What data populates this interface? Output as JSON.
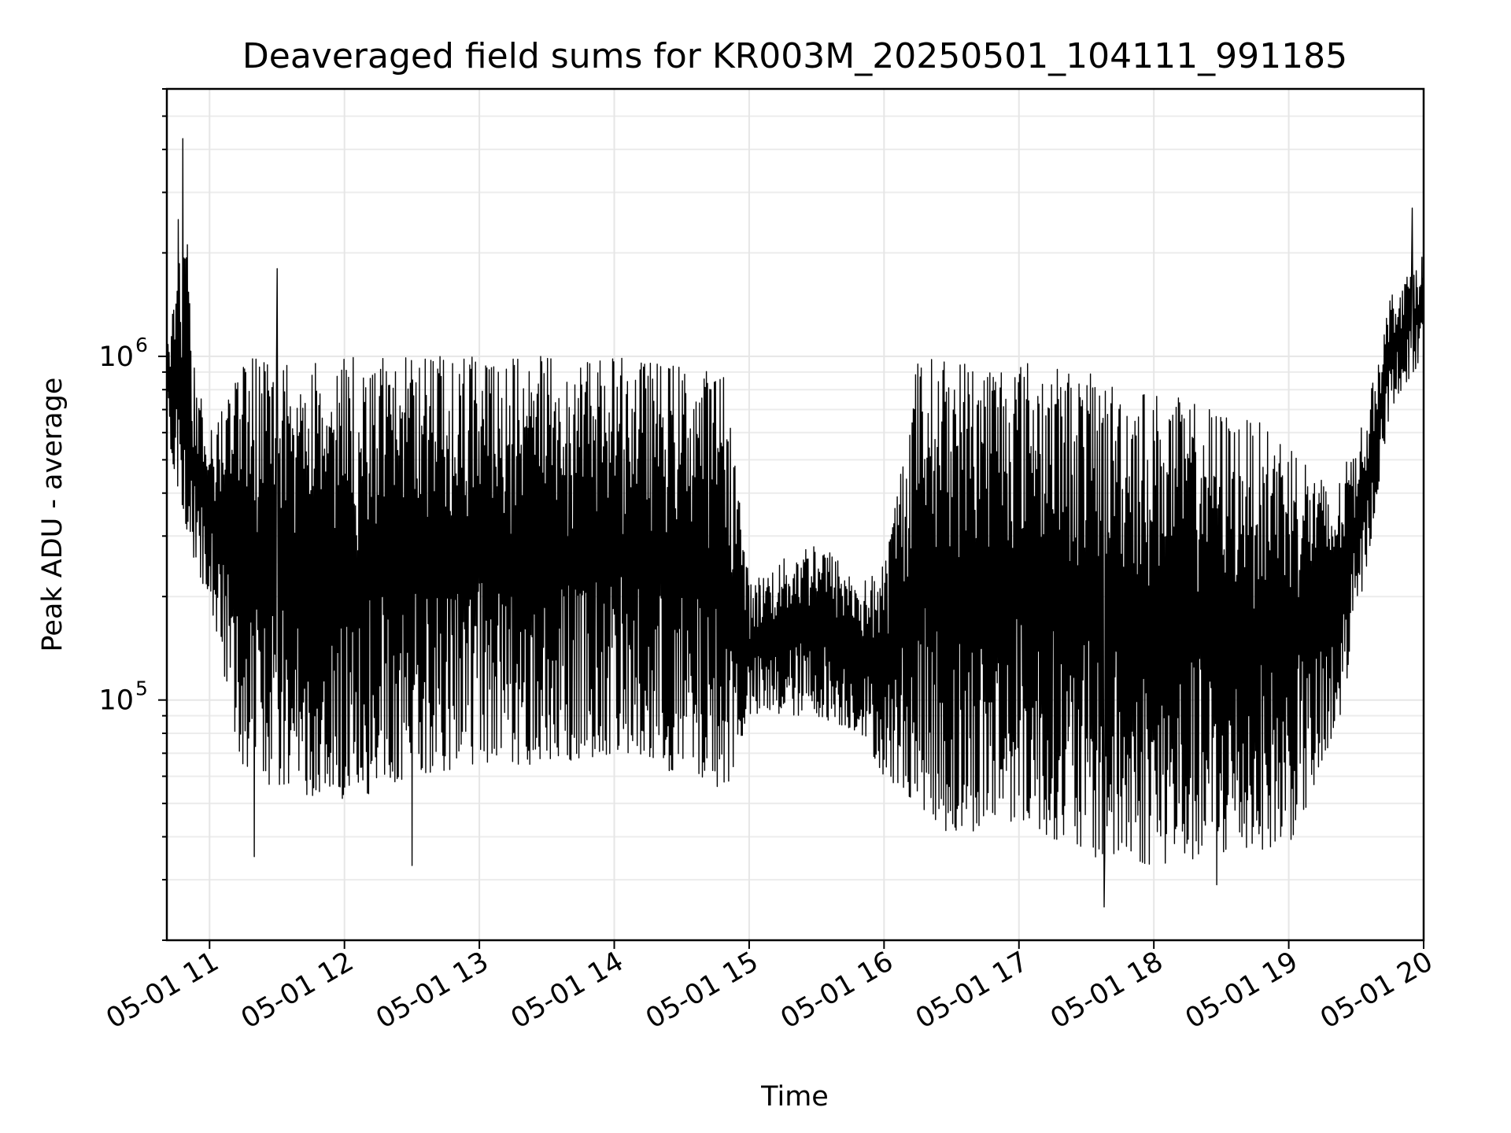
{
  "chart_data": {
    "type": "line",
    "title": "Deaveraged field sums for KR003M_20250501_104111_991185",
    "xlabel": "Time",
    "ylabel": "Peak ADU - average",
    "yscale": "log",
    "xlim": [
      "2025-05-01 10:41",
      "2025-05-01 20:00"
    ],
    "ylim": [
      20000,
      6000000
    ],
    "grid": "both",
    "legend": "none",
    "x_ticks": [
      {
        "value": "2025-05-01 11:00",
        "label": "05-01 11"
      },
      {
        "value": "2025-05-01 12:00",
        "label": "05-01 12"
      },
      {
        "value": "2025-05-01 13:00",
        "label": "05-01 13"
      },
      {
        "value": "2025-05-01 14:00",
        "label": "05-01 14"
      },
      {
        "value": "2025-05-01 15:00",
        "label": "05-01 15"
      },
      {
        "value": "2025-05-01 16:00",
        "label": "05-01 16"
      },
      {
        "value": "2025-05-01 17:00",
        "label": "05-01 17"
      },
      {
        "value": "2025-05-01 18:00",
        "label": "05-01 18"
      },
      {
        "value": "2025-05-01 19:00",
        "label": "05-01 19"
      },
      {
        "value": "2025-05-01 20:00",
        "label": "05-01 20"
      }
    ],
    "y_ticks": [
      {
        "value": 100000,
        "base": "10",
        "exp": "5"
      },
      {
        "value": 1000000,
        "base": "10",
        "exp": "6"
      }
    ],
    "series": [
      {
        "color": "#000000",
        "profile": {
          "x": [
            "2025-05-01 10:41",
            "2025-05-01 10:50",
            "2025-05-01 10:52",
            "2025-05-01 11:00",
            "2025-05-01 11:15",
            "2025-05-01 11:30",
            "2025-05-01 12:00",
            "2025-05-01 12:30",
            "2025-05-01 13:00",
            "2025-05-01 13:30",
            "2025-05-01 14:00",
            "2025-05-01 14:30",
            "2025-05-01 14:50",
            "2025-05-01 15:00",
            "2025-05-01 15:30",
            "2025-05-01 15:50",
            "2025-05-01 16:00",
            "2025-05-01 16:15",
            "2025-05-01 16:30",
            "2025-05-01 17:00",
            "2025-05-01 17:30",
            "2025-05-01 18:00",
            "2025-05-01 18:30",
            "2025-05-01 19:00",
            "2025-05-01 19:20",
            "2025-05-01 19:35",
            "2025-05-01 19:45",
            "2025-05-01 20:00"
          ],
          "high": [
            1200000,
            2500000,
            1000000,
            600000,
            1000000,
            1000000,
            1000000,
            1000000,
            1000000,
            1000000,
            1000000,
            950000,
            900000,
            220000,
            300000,
            220000,
            250000,
            1000000,
            1000000,
            1000000,
            900000,
            800000,
            700000,
            600000,
            400000,
            700000,
            1500000,
            2000000
          ],
          "low": [
            600000,
            300000,
            250000,
            200000,
            60000,
            55000,
            50000,
            60000,
            65000,
            65000,
            70000,
            60000,
            55000,
            90000,
            90000,
            80000,
            60000,
            50000,
            40000,
            45000,
            35000,
            33000,
            35000,
            38000,
            70000,
            250000,
            700000,
            1000000
          ]
        },
        "peaks": [
          {
            "x": "2025-05-01 10:48",
            "y": 4300000
          },
          {
            "x": "2025-05-01 10:46",
            "y": 2500000
          },
          {
            "x": "2025-05-01 11:30",
            "y": 1800000
          },
          {
            "x": "2025-05-01 19:55",
            "y": 2700000
          }
        ],
        "troughs": [
          {
            "x": "2025-05-01 11:20",
            "y": 35000
          },
          {
            "x": "2025-05-01 12:30",
            "y": 33000
          },
          {
            "x": "2025-05-01 17:38",
            "y": 25000
          },
          {
            "x": "2025-05-01 18:28",
            "y": 29000
          }
        ]
      }
    ]
  }
}
